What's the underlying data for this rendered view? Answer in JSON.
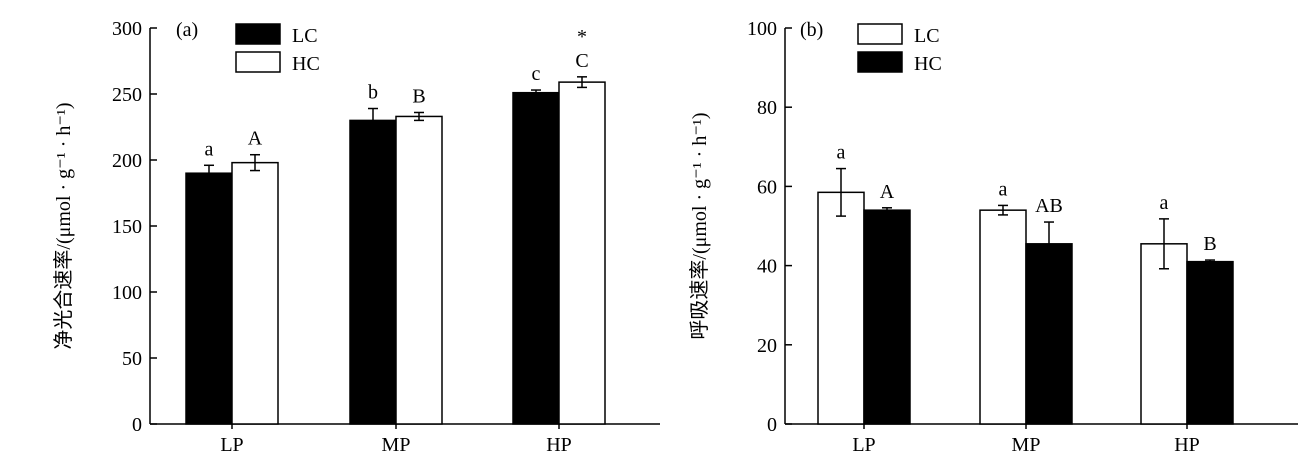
{
  "chart_data": [
    {
      "panel_label": "(a)",
      "type": "bar",
      "ylabel": "净光合速率/(μmol · g⁻¹ · h⁻¹)",
      "xlabel": "",
      "ylim": [
        0,
        300
      ],
      "yticks": [
        0,
        50,
        100,
        150,
        200,
        250,
        300
      ],
      "categories": [
        "LP",
        "MP",
        "HP"
      ],
      "legend_position": "top-left",
      "series": [
        {
          "name": "LC",
          "fill": "#000000",
          "values": [
            190,
            230,
            251
          ],
          "errors": [
            6,
            9,
            2
          ],
          "sig_labels": [
            [
              "a"
            ],
            [
              "b"
            ],
            [
              "c"
            ]
          ]
        },
        {
          "name": "HC",
          "fill": "#ffffff",
          "values": [
            198,
            233,
            259
          ],
          "errors": [
            6,
            3,
            4
          ],
          "sig_labels": [
            [
              "A"
            ],
            [
              "B"
            ],
            [
              "C",
              "*"
            ]
          ]
        }
      ]
    },
    {
      "panel_label": "(b)",
      "type": "bar",
      "ylabel": "呼吸速率/(μmol · g⁻¹ · h⁻¹)",
      "xlabel": "",
      "ylim": [
        0,
        100
      ],
      "yticks": [
        0,
        20,
        40,
        60,
        80,
        100
      ],
      "categories": [
        "LP",
        "MP",
        "HP"
      ],
      "legend_position": "top-left",
      "series": [
        {
          "name": "LC",
          "fill": "#ffffff",
          "values": [
            58.5,
            54,
            45.5
          ],
          "errors": [
            6,
            1.2,
            6.3
          ],
          "sig_labels": [
            [
              "a"
            ],
            [
              "a"
            ],
            [
              "a"
            ]
          ]
        },
        {
          "name": "HC",
          "fill": "#000000",
          "values": [
            54,
            45.5,
            41
          ],
          "errors": [
            0.6,
            5.5,
            0.4
          ],
          "sig_labels": [
            [
              "A"
            ],
            [
              "AB"
            ],
            [
              "B"
            ]
          ]
        }
      ]
    }
  ]
}
